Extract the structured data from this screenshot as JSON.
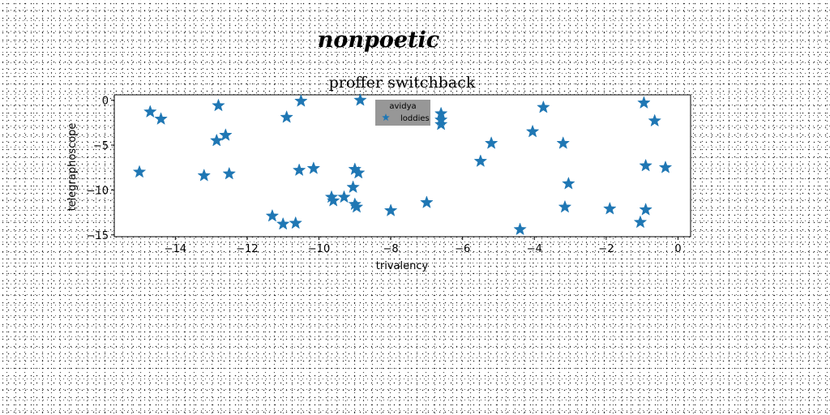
{
  "figure": {
    "suptitle": "nonpoetic"
  },
  "chart_data": {
    "type": "scatter",
    "title": "proffer switchback",
    "xlabel": "trivalency",
    "ylabel": "telegraphoscope",
    "xlim": [
      -15.7,
      0.35
    ],
    "ylim": [
      -15.2,
      0.6
    ],
    "xticks": [
      -14,
      -12,
      -10,
      -8,
      -6,
      -4,
      -2,
      0
    ],
    "yticks": [
      0,
      -5,
      -10,
      -15
    ],
    "grid": false,
    "legend": {
      "title": "avidya",
      "placement": "upper center",
      "entries": [
        "loddies"
      ]
    },
    "series": [
      {
        "name": "loddies",
        "marker": "star",
        "color": "#1f77b4",
        "points": [
          [
            -14.7,
            -1.3
          ],
          [
            -14.4,
            -2.1
          ],
          [
            -15.0,
            -8.0
          ],
          [
            -13.2,
            -8.4
          ],
          [
            -12.8,
            -0.6
          ],
          [
            -12.6,
            -3.9
          ],
          [
            -12.85,
            -4.5
          ],
          [
            -12.5,
            -8.2
          ],
          [
            -11.3,
            -12.9
          ],
          [
            -11.0,
            -13.8
          ],
          [
            -10.65,
            -13.7
          ],
          [
            -10.9,
            -1.9
          ],
          [
            -10.5,
            -0.1
          ],
          [
            -10.55,
            -7.8
          ],
          [
            -10.15,
            -7.6
          ],
          [
            -9.65,
            -10.8
          ],
          [
            -9.6,
            -11.2
          ],
          [
            -9.3,
            -10.8
          ],
          [
            -9.0,
            -7.7
          ],
          [
            -8.9,
            -8.1
          ],
          [
            -9.05,
            -9.7
          ],
          [
            -9.0,
            -11.6
          ],
          [
            -8.95,
            -11.9
          ],
          [
            -8.85,
            0.0
          ],
          [
            -8.0,
            -12.3
          ],
          [
            -7.0,
            -11.4
          ],
          [
            -6.6,
            -1.5
          ],
          [
            -6.6,
            -2.2
          ],
          [
            -6.6,
            -2.7
          ],
          [
            -5.5,
            -6.8
          ],
          [
            -5.2,
            -4.8
          ],
          [
            -4.4,
            -14.4
          ],
          [
            -4.05,
            -3.5
          ],
          [
            -3.75,
            -0.8
          ],
          [
            -3.2,
            -4.8
          ],
          [
            -3.15,
            -11.9
          ],
          [
            -3.05,
            -9.3
          ],
          [
            -1.9,
            -12.1
          ],
          [
            -1.05,
            -13.6
          ],
          [
            -0.95,
            -0.3
          ],
          [
            -0.65,
            -2.3
          ],
          [
            -0.9,
            -7.3
          ],
          [
            -0.9,
            -12.2
          ],
          [
            -0.35,
            -7.5
          ]
        ]
      }
    ]
  }
}
